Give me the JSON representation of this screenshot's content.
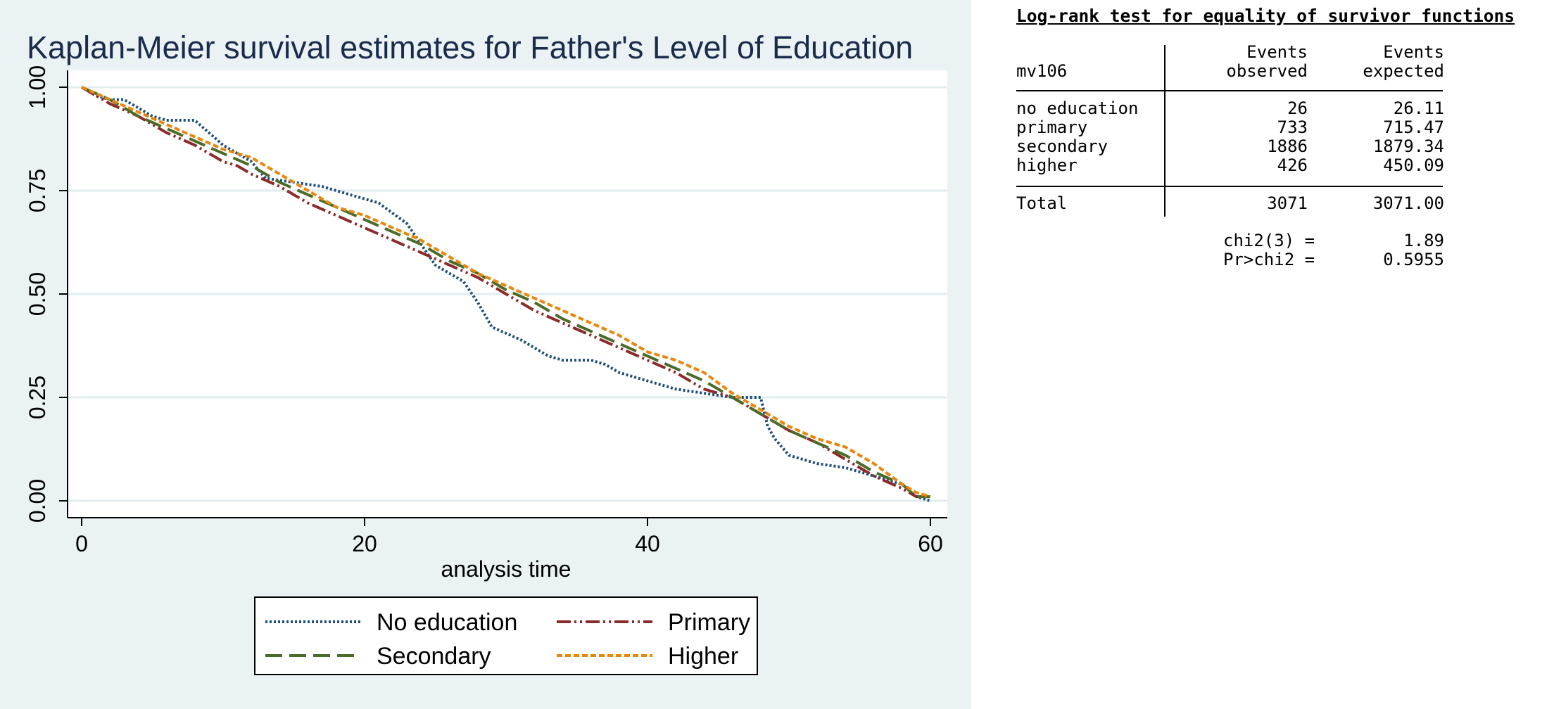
{
  "chart_data": {
    "type": "line",
    "title": "Kaplan-Meier survival estimates for Father's Level of Education",
    "xlabel": "analysis time",
    "ylabel": "",
    "xlim": [
      0,
      60
    ],
    "ylim": [
      0,
      1
    ],
    "xticks": [
      "0",
      "20",
      "40",
      "60"
    ],
    "yticks": [
      "0.00",
      "0.25",
      "0.50",
      "0.75",
      "1.00"
    ],
    "grid": true,
    "legend_position": "bottom",
    "series": [
      {
        "name": "No education",
        "color": "#1f4e79",
        "dash": "dotted",
        "points": [
          [
            0,
            1.0
          ],
          [
            1,
            0.98
          ],
          [
            2,
            0.97
          ],
          [
            3,
            0.97
          ],
          [
            4,
            0.95
          ],
          [
            5,
            0.93
          ],
          [
            6,
            0.92
          ],
          [
            7,
            0.92
          ],
          [
            8,
            0.92
          ],
          [
            9,
            0.89
          ],
          [
            10,
            0.86
          ],
          [
            12,
            0.82
          ],
          [
            13,
            0.78
          ],
          [
            15,
            0.77
          ],
          [
            17,
            0.76
          ],
          [
            19,
            0.74
          ],
          [
            21,
            0.72
          ],
          [
            23,
            0.67
          ],
          [
            24,
            0.62
          ],
          [
            25,
            0.57
          ],
          [
            26,
            0.55
          ],
          [
            27,
            0.53
          ],
          [
            28,
            0.48
          ],
          [
            29,
            0.42
          ],
          [
            31,
            0.39
          ],
          [
            32,
            0.37
          ],
          [
            33,
            0.35
          ],
          [
            34,
            0.34
          ],
          [
            36,
            0.34
          ],
          [
            37,
            0.33
          ],
          [
            38,
            0.31
          ],
          [
            40,
            0.29
          ],
          [
            42,
            0.27
          ],
          [
            44,
            0.26
          ],
          [
            46,
            0.25
          ],
          [
            47,
            0.25
          ],
          [
            48,
            0.25
          ],
          [
            48.5,
            0.18
          ],
          [
            49,
            0.15
          ],
          [
            50,
            0.11
          ],
          [
            52,
            0.09
          ],
          [
            54,
            0.08
          ],
          [
            55,
            0.07
          ],
          [
            56,
            0.06
          ],
          [
            57,
            0.05
          ],
          [
            58,
            0.04
          ],
          [
            59,
            0.01
          ],
          [
            60,
            0.0
          ]
        ]
      },
      {
        "name": "Primary",
        "color": "#8b2b2b",
        "dash": "dashdot",
        "points": [
          [
            0,
            1.0
          ],
          [
            2,
            0.96
          ],
          [
            4,
            0.93
          ],
          [
            6,
            0.89
          ],
          [
            8,
            0.86
          ],
          [
            10,
            0.82
          ],
          [
            11,
            0.81
          ],
          [
            12,
            0.79
          ],
          [
            14,
            0.76
          ],
          [
            16,
            0.72
          ],
          [
            18,
            0.69
          ],
          [
            20,
            0.66
          ],
          [
            22,
            0.63
          ],
          [
            24,
            0.6
          ],
          [
            26,
            0.57
          ],
          [
            28,
            0.54
          ],
          [
            30,
            0.5
          ],
          [
            32,
            0.46
          ],
          [
            34,
            0.43
          ],
          [
            36,
            0.4
          ],
          [
            38,
            0.37
          ],
          [
            40,
            0.34
          ],
          [
            42,
            0.31
          ],
          [
            44,
            0.27
          ],
          [
            46,
            0.25
          ],
          [
            48,
            0.21
          ],
          [
            50,
            0.17
          ],
          [
            52,
            0.14
          ],
          [
            54,
            0.1
          ],
          [
            56,
            0.06
          ],
          [
            58,
            0.03
          ],
          [
            59,
            0.01
          ],
          [
            60,
            0.01
          ]
        ]
      },
      {
        "name": "Secondary",
        "color": "#4a6b2a",
        "dash": "longdash",
        "points": [
          [
            0,
            1.0
          ],
          [
            2,
            0.97
          ],
          [
            4,
            0.93
          ],
          [
            6,
            0.9
          ],
          [
            8,
            0.87
          ],
          [
            10,
            0.84
          ],
          [
            12,
            0.81
          ],
          [
            14,
            0.77
          ],
          [
            16,
            0.74
          ],
          [
            18,
            0.71
          ],
          [
            20,
            0.68
          ],
          [
            22,
            0.65
          ],
          [
            24,
            0.62
          ],
          [
            26,
            0.58
          ],
          [
            28,
            0.55
          ],
          [
            30,
            0.51
          ],
          [
            32,
            0.48
          ],
          [
            34,
            0.44
          ],
          [
            36,
            0.41
          ],
          [
            38,
            0.38
          ],
          [
            40,
            0.35
          ],
          [
            42,
            0.32
          ],
          [
            44,
            0.29
          ],
          [
            46,
            0.25
          ],
          [
            48,
            0.21
          ],
          [
            50,
            0.17
          ],
          [
            52,
            0.14
          ],
          [
            54,
            0.11
          ],
          [
            56,
            0.07
          ],
          [
            58,
            0.04
          ],
          [
            59,
            0.01
          ],
          [
            60,
            0.01
          ]
        ]
      },
      {
        "name": "Higher",
        "color": "#e8870c",
        "dash": "shortdash",
        "points": [
          [
            0,
            1.0
          ],
          [
            2,
            0.97
          ],
          [
            4,
            0.94
          ],
          [
            6,
            0.91
          ],
          [
            8,
            0.88
          ],
          [
            10,
            0.85
          ],
          [
            12,
            0.83
          ],
          [
            14,
            0.79
          ],
          [
            16,
            0.75
          ],
          [
            18,
            0.71
          ],
          [
            20,
            0.69
          ],
          [
            22,
            0.66
          ],
          [
            24,
            0.63
          ],
          [
            26,
            0.59
          ],
          [
            28,
            0.55
          ],
          [
            30,
            0.52
          ],
          [
            32,
            0.49
          ],
          [
            34,
            0.46
          ],
          [
            36,
            0.43
          ],
          [
            38,
            0.4
          ],
          [
            40,
            0.36
          ],
          [
            42,
            0.34
          ],
          [
            44,
            0.31
          ],
          [
            46,
            0.26
          ],
          [
            48,
            0.22
          ],
          [
            50,
            0.18
          ],
          [
            52,
            0.15
          ],
          [
            54,
            0.13
          ],
          [
            56,
            0.09
          ],
          [
            58,
            0.04
          ],
          [
            59,
            0.02
          ],
          [
            60,
            0.01
          ]
        ]
      }
    ]
  },
  "logrank": {
    "title": "Log-rank test for equality of survivor functions",
    "header_var": "mv106",
    "col1_top": "Events",
    "col1_bottom": "observed",
    "col2_top": "Events",
    "col2_bottom": "expected",
    "rows": [
      {
        "label": "no education",
        "observed": "26",
        "expected": "26.11"
      },
      {
        "label": "primary",
        "observed": "733",
        "expected": "715.47"
      },
      {
        "label": "secondary",
        "observed": "1886",
        "expected": "1879.34"
      },
      {
        "label": "higher",
        "observed": "426",
        "expected": "450.09"
      }
    ],
    "total": {
      "label": "Total",
      "observed": "3071",
      "expected": "3071.00"
    },
    "chi2_label": "chi2(3) =",
    "chi2_value": "1.89",
    "p_label": "Pr>chi2 =",
    "p_value": "0.5955"
  }
}
